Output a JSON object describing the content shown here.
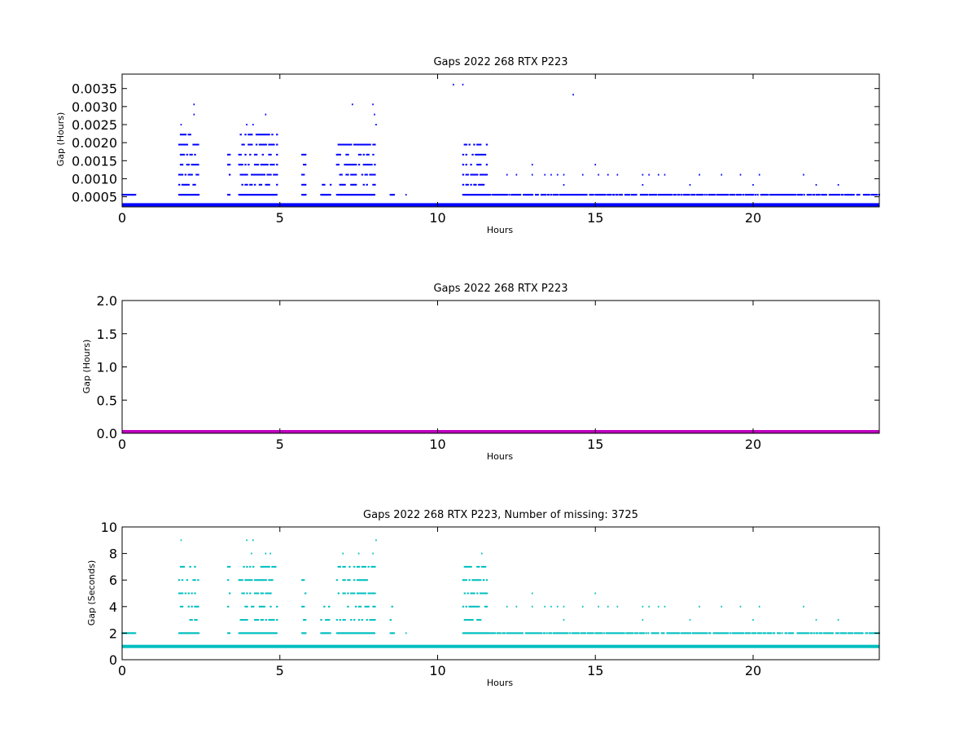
{
  "chart_data": [
    {
      "type": "scatter",
      "title": "Gaps 2022 268 RTX  P223",
      "xlabel": "Hours",
      "ylabel": "Gap (Hours)",
      "xlim": [
        0,
        24
      ],
      "ylim": [
        0.00022,
        0.0039
      ],
      "xticks": [
        "0",
        "5",
        "10",
        "15",
        "20"
      ],
      "yticks": [
        "0.0005",
        "0.0010",
        "0.0015",
        "0.0020",
        "0.0025",
        "0.0030",
        "0.0035"
      ],
      "color": "#0000ff",
      "baseline_value": 0.000278,
      "base_level": 0.000556,
      "step": 0.000278,
      "dense_level": 0.000556,
      "clusters": [
        {
          "x": [
            0.0,
            0.4
          ],
          "peak": 0.000556
        },
        {
          "x": [
            1.8,
            2.4
          ],
          "peak": 0.0025
        },
        {
          "x": [
            3.35,
            3.4
          ],
          "peak": 0.0019
        },
        {
          "x": [
            3.7,
            4.9
          ],
          "peak": 0.0025
        },
        {
          "x": [
            5.7,
            5.8
          ],
          "peak": 0.0017
        },
        {
          "x": [
            6.3,
            6.6
          ],
          "peak": 0.0011
        },
        {
          "x": [
            6.8,
            8.0
          ],
          "peak": 0.0022
        },
        {
          "x": [
            8.5,
            8.6
          ],
          "peak": 0.0011
        },
        {
          "x": [
            10.8,
            11.6
          ],
          "peak": 0.0022
        }
      ],
      "points": [
        {
          "x": 2.28,
          "y": 0.00306
        },
        {
          "x": 2.28,
          "y": 0.00278
        },
        {
          "x": 4.55,
          "y": 0.00278
        },
        {
          "x": 7.3,
          "y": 0.00306
        },
        {
          "x": 7.95,
          "y": 0.00306
        },
        {
          "x": 8.0,
          "y": 0.00278
        },
        {
          "x": 8.05,
          "y": 0.0025
        },
        {
          "x": 1.87,
          "y": 0.0025
        },
        {
          "x": 3.95,
          "y": 0.0025
        },
        {
          "x": 4.15,
          "y": 0.0025
        },
        {
          "x": 10.5,
          "y": 0.00361
        },
        {
          "x": 10.8,
          "y": 0.00361
        },
        {
          "x": 14.3,
          "y": 0.00333
        },
        {
          "x": 13.0,
          "y": 0.00139
        },
        {
          "x": 15.0,
          "y": 0.00139
        },
        {
          "x": 12.2,
          "y": 0.00111
        },
        {
          "x": 12.5,
          "y": 0.00111
        },
        {
          "x": 13.0,
          "y": 0.00111
        },
        {
          "x": 13.4,
          "y": 0.00111
        },
        {
          "x": 13.6,
          "y": 0.00111
        },
        {
          "x": 13.8,
          "y": 0.00111
        },
        {
          "x": 14.0,
          "y": 0.00111
        },
        {
          "x": 14.6,
          "y": 0.00111
        },
        {
          "x": 15.1,
          "y": 0.00111
        },
        {
          "x": 15.4,
          "y": 0.00111
        },
        {
          "x": 15.7,
          "y": 0.00111
        },
        {
          "x": 16.5,
          "y": 0.00111
        },
        {
          "x": 16.7,
          "y": 0.00111
        },
        {
          "x": 17.0,
          "y": 0.00111
        },
        {
          "x": 17.2,
          "y": 0.00111
        },
        {
          "x": 18.3,
          "y": 0.00111
        },
        {
          "x": 19.0,
          "y": 0.00111
        },
        {
          "x": 19.6,
          "y": 0.00111
        },
        {
          "x": 20.2,
          "y": 0.00111
        },
        {
          "x": 21.6,
          "y": 0.00111
        },
        {
          "x": 14.0,
          "y": 0.00083
        },
        {
          "x": 16.5,
          "y": 0.00083
        },
        {
          "x": 18.0,
          "y": 0.00083
        },
        {
          "x": 20.0,
          "y": 0.00083
        },
        {
          "x": 22.0,
          "y": 0.00083
        },
        {
          "x": 22.7,
          "y": 0.00083
        },
        {
          "x": 9.0,
          "y": 0.000556
        }
      ],
      "scatter_ranges": [
        [
          11.6,
          24.0
        ]
      ]
    },
    {
      "type": "scatter",
      "title": "Gaps 2022 268 RTX  P223",
      "xlabel": "Hours",
      "ylabel": "Gap (Hours)",
      "xlim": [
        0,
        24
      ],
      "ylim": [
        0,
        2.0
      ],
      "xticks": [
        "0",
        "5",
        "10",
        "15",
        "20"
      ],
      "yticks": [
        "0.0",
        "0.5",
        "1.0",
        "1.5",
        "2.0"
      ],
      "color": "#bf00bf",
      "baseline_value": 0.0
    },
    {
      "type": "scatter",
      "title": "Gaps 2022 268 RTX  P223, Number of missing: 3725",
      "xlabel": "Hours",
      "ylabel": "Gap (Seconds)",
      "xlim": [
        0,
        24
      ],
      "ylim": [
        0,
        10
      ],
      "xticks": [
        "0",
        "5",
        "10",
        "15",
        "20"
      ],
      "yticks": [
        "0",
        "2",
        "4",
        "6",
        "8",
        "10"
      ],
      "color": "#00bfbf",
      "baseline_value": 1,
      "base_level": 2,
      "step": 1,
      "dense_level": 2,
      "clusters": [
        {
          "x": [
            0.0,
            0.4
          ],
          "peak": 2
        },
        {
          "x": [
            1.8,
            2.4
          ],
          "peak": 7
        },
        {
          "x": [
            3.35,
            3.4
          ],
          "peak": 7
        },
        {
          "x": [
            3.7,
            4.9
          ],
          "peak": 7
        },
        {
          "x": [
            5.7,
            5.8
          ],
          "peak": 6
        },
        {
          "x": [
            6.3,
            6.6
          ],
          "peak": 4
        },
        {
          "x": [
            6.8,
            8.0
          ],
          "peak": 7
        },
        {
          "x": [
            8.5,
            8.6
          ],
          "peak": 4
        },
        {
          "x": [
            10.8,
            11.6
          ],
          "peak": 7
        }
      ],
      "points": [
        {
          "x": 1.87,
          "y": 9
        },
        {
          "x": 3.95,
          "y": 9
        },
        {
          "x": 4.15,
          "y": 9
        },
        {
          "x": 8.05,
          "y": 9
        },
        {
          "x": 4.1,
          "y": 8
        },
        {
          "x": 4.55,
          "y": 8
        },
        {
          "x": 4.7,
          "y": 8
        },
        {
          "x": 7.0,
          "y": 8
        },
        {
          "x": 7.5,
          "y": 8
        },
        {
          "x": 7.95,
          "y": 8
        },
        {
          "x": 11.4,
          "y": 8
        },
        {
          "x": 11.45,
          "y": 6
        },
        {
          "x": 13.0,
          "y": 5
        },
        {
          "x": 15.0,
          "y": 5
        },
        {
          "x": 12.2,
          "y": 4
        },
        {
          "x": 12.5,
          "y": 4
        },
        {
          "x": 13.0,
          "y": 4
        },
        {
          "x": 13.4,
          "y": 4
        },
        {
          "x": 13.6,
          "y": 4
        },
        {
          "x": 13.8,
          "y": 4
        },
        {
          "x": 14.0,
          "y": 4
        },
        {
          "x": 14.6,
          "y": 4
        },
        {
          "x": 15.1,
          "y": 4
        },
        {
          "x": 15.4,
          "y": 4
        },
        {
          "x": 15.7,
          "y": 4
        },
        {
          "x": 16.5,
          "y": 4
        },
        {
          "x": 16.7,
          "y": 4
        },
        {
          "x": 17.0,
          "y": 4
        },
        {
          "x": 17.2,
          "y": 4
        },
        {
          "x": 18.3,
          "y": 4
        },
        {
          "x": 19.0,
          "y": 4
        },
        {
          "x": 19.6,
          "y": 4
        },
        {
          "x": 20.2,
          "y": 4
        },
        {
          "x": 21.6,
          "y": 4
        },
        {
          "x": 14.0,
          "y": 3
        },
        {
          "x": 16.5,
          "y": 3
        },
        {
          "x": 18.0,
          "y": 3
        },
        {
          "x": 20.0,
          "y": 3
        },
        {
          "x": 22.0,
          "y": 3
        },
        {
          "x": 22.7,
          "y": 3
        },
        {
          "x": 9.0,
          "y": 2
        }
      ],
      "scatter_ranges": [
        [
          11.6,
          24.0
        ]
      ]
    }
  ]
}
